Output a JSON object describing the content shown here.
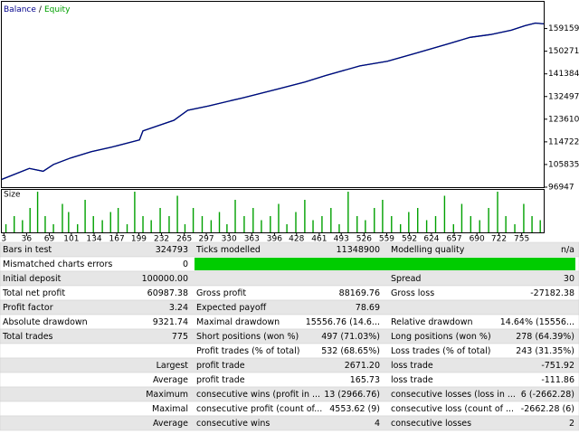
{
  "chart_data": [
    {
      "type": "line",
      "legend_separator": "/",
      "x": [
        0,
        40,
        60,
        75,
        100,
        130,
        160,
        200,
        205,
        250,
        270,
        300,
        350,
        400,
        440,
        470,
        520,
        560,
        600,
        650,
        680,
        710,
        740,
        760,
        775,
        787
      ],
      "series": [
        {
          "name": "Equity",
          "color": "#00a000",
          "values": [
            100000,
            104300,
            103200,
            105835,
            108400,
            110900,
            112700,
            115500,
            119000,
            123200,
            127100,
            128800,
            132000,
            135400,
            138200,
            140700,
            144500,
            146300,
            149400,
            153300,
            155700,
            156800,
            158500,
            160300,
            161300,
            160987
          ]
        },
        {
          "name": "Balance",
          "color": "#00008b",
          "values": [
            100000,
            104300,
            103200,
            105835,
            108400,
            110900,
            112700,
            115500,
            119000,
            123200,
            127100,
            128800,
            132000,
            135400,
            138200,
            140700,
            144500,
            146300,
            149400,
            153300,
            155700,
            156800,
            158500,
            160300,
            161300,
            160987
          ]
        }
      ],
      "xlim": [
        0,
        787
      ],
      "ylim": [
        96947,
        169650
      ],
      "yticks": [
        96947,
        105835,
        114722,
        123610,
        132497,
        141384,
        150271,
        159159
      ]
    },
    {
      "type": "bar",
      "title": "Size",
      "color": "#00a000",
      "x": [
        6,
        18,
        30,
        41,
        52,
        63,
        75,
        88,
        97,
        110,
        121,
        133,
        146,
        158,
        169,
        182,
        193,
        205,
        217,
        230,
        243,
        255,
        266,
        278,
        291,
        304,
        316,
        327,
        339,
        352,
        365,
        377,
        390,
        402,
        414,
        427,
        440,
        452,
        465,
        478,
        490,
        503,
        516,
        528,
        541,
        553,
        566,
        579,
        591,
        604,
        617,
        630,
        643,
        656,
        668,
        681,
        694,
        707,
        720,
        732,
        745,
        758,
        770,
        782
      ],
      "values": [
        1,
        2,
        1.5,
        3,
        5,
        2,
        1,
        3.5,
        2.5,
        1,
        4,
        2,
        1.5,
        2.5,
        3,
        1,
        5,
        2,
        1.5,
        3,
        2,
        4.5,
        1,
        3,
        2,
        1.5,
        2.5,
        1,
        4,
        2,
        3,
        1.5,
        2,
        3.5,
        1,
        2.5,
        4,
        1.5,
        2,
        3,
        1,
        5,
        2,
        1.5,
        3,
        4,
        2,
        1,
        2.5,
        3,
        1.5,
        2,
        4.5,
        1,
        3.5,
        2,
        1.5,
        3,
        5,
        2,
        1,
        3.5,
        2,
        1.5
      ],
      "xlim": [
        0,
        787
      ],
      "ylim": [
        0,
        5
      ],
      "xticks": [
        3,
        36,
        69,
        101,
        134,
        167,
        199,
        232,
        265,
        297,
        330,
        363,
        396,
        428,
        461,
        493,
        526,
        559,
        592,
        624,
        657,
        690,
        722,
        755
      ]
    }
  ],
  "table": {
    "rows": [
      [
        "Bars in test",
        "324793",
        "Ticks modelled",
        "11348900",
        "Modelling quality",
        "n/a"
      ],
      [
        "Mismatched charts errors",
        "0",
        null,
        null,
        null,
        null
      ],
      [
        "Initial deposit",
        "100000.00",
        null,
        null,
        "Spread",
        "30"
      ],
      [
        "Total net profit",
        "60987.38",
        "Gross profit",
        "88169.76",
        "Gross loss",
        "-27182.38"
      ],
      [
        "Profit factor",
        "3.24",
        "Expected payoff",
        "78.69",
        null,
        null
      ],
      [
        "Absolute drawdown",
        "9321.74",
        "Maximal drawdown",
        "15556.76 (14.6...",
        "Relative drawdown",
        "14.64% (15556..."
      ],
      [
        "Total trades",
        "775",
        "Short positions (won %)",
        "497 (71.03%)",
        "Long positions (won %)",
        "278 (64.39%)"
      ],
      [
        null,
        null,
        "Profit trades (% of total)",
        "532 (68.65%)",
        "Loss trades (% of total)",
        "243 (31.35%)"
      ],
      [
        null,
        "Largest",
        "profit trade",
        "2671.20",
        "loss trade",
        "-751.92"
      ],
      [
        null,
        "Average",
        "profit trade",
        "165.73",
        "loss trade",
        "-111.86"
      ],
      [
        null,
        "Maximum",
        "consecutive wins (profit in ...",
        "13 (2966.76)",
        "consecutive losses (loss in ...",
        "6 (-2662.28)"
      ],
      [
        null,
        "Maximal",
        "consecutive profit (count of...",
        "4553.62 (9)",
        "consecutive loss (count of ...",
        "-2662.28 (6)"
      ],
      [
        null,
        "Average",
        "consecutive wins",
        "4",
        "consecutive losses",
        "2"
      ]
    ]
  }
}
